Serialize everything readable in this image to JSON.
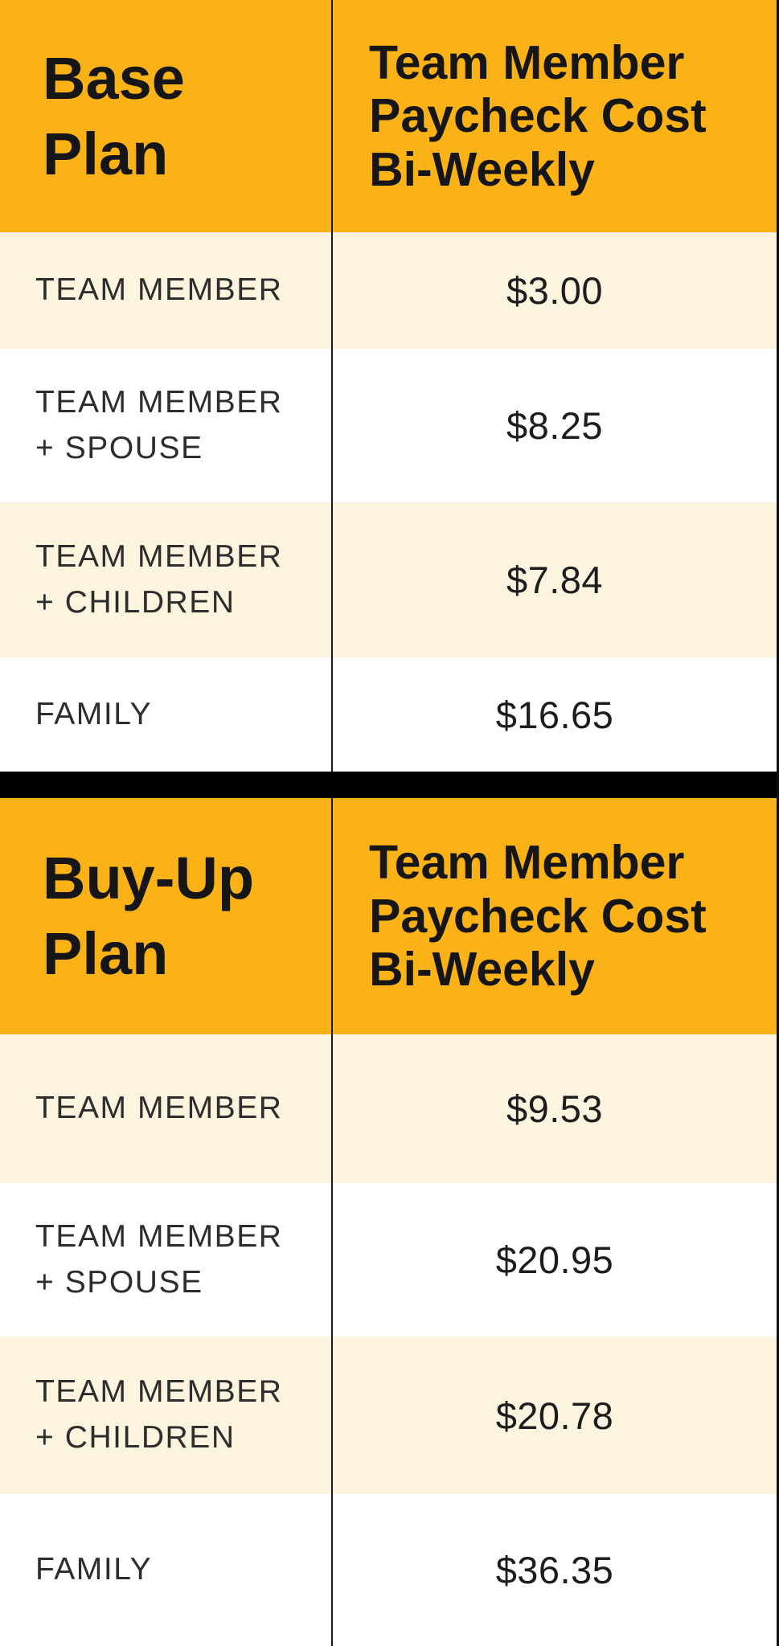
{
  "theme": {
    "header_bg": "#FBB217",
    "row_alt_bg": "#FDF4DF",
    "row_bg": "#FFFFFF",
    "separator": "#000000",
    "divider": "#1A1A1A",
    "edge": "#0E0E0E",
    "text_dark": "#161616",
    "text_label": "#2D2D2D",
    "text_value": "#1D1D1D"
  },
  "tables": [
    {
      "plan_title": "Base\nPlan",
      "cost_header": "Team Member\nPaycheck Cost\nBi-Weekly",
      "rows": [
        {
          "label": "TEAM MEMBER",
          "value": "$3.00"
        },
        {
          "label": "TEAM MEMBER\n+ SPOUSE",
          "value": "$8.25"
        },
        {
          "label": "TEAM MEMBER\n+ CHILDREN",
          "value": "$7.84"
        },
        {
          "label": "FAMILY",
          "value": "$16.65"
        }
      ]
    },
    {
      "plan_title": "Buy-Up\nPlan",
      "cost_header": "Team Member\nPaycheck Cost\nBi-Weekly",
      "rows": [
        {
          "label": "TEAM MEMBER",
          "value": "$9.53"
        },
        {
          "label": "TEAM MEMBER\n+ SPOUSE",
          "value": "$20.95"
        },
        {
          "label": "TEAM MEMBER\n+ CHILDREN",
          "value": "$20.78"
        },
        {
          "label": "FAMILY",
          "value": "$36.35"
        }
      ]
    }
  ]
}
